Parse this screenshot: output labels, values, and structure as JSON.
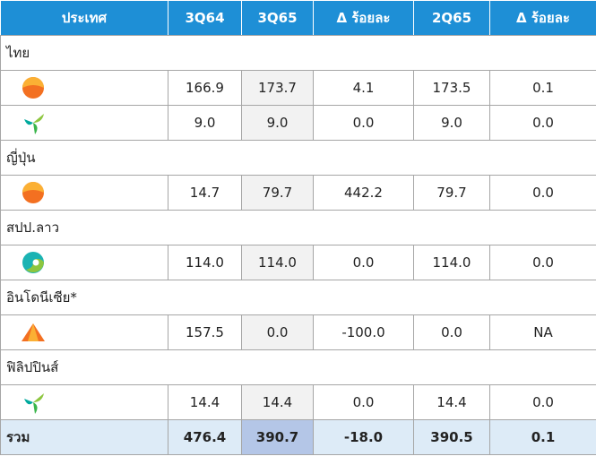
{
  "header": [
    "ประเทศ",
    "3Q64",
    "3Q65",
    "Δ ร้อยละ",
    "2Q65",
    "Δ ร้อยละ"
  ],
  "sections": [
    {
      "name": "ไทย",
      "rows": [
        [
          "166.9",
          "173.7",
          "4.1",
          "173.5",
          "0.1"
        ],
        [
          "9.0",
          "9.0",
          "0.0",
          "9.0",
          "0.0"
        ]
      ]
    },
    {
      "name": "ญี่ปุ่น",
      "rows": [
        [
          "14.7",
          "79.7",
          "442.2",
          "79.7",
          "0.0"
        ]
      ]
    },
    {
      "name": "สปป.ลาว",
      "rows": [
        [
          "114.0",
          "114.0",
          "0.0",
          "114.0",
          "0.0"
        ]
      ]
    },
    {
      "name": "อินโดนีเซีย*",
      "rows": [
        [
          "157.5",
          "0.0",
          "-100.0",
          "0.0",
          "NA"
        ]
      ]
    },
    {
      "name": "ฟิลิปปินส์",
      "rows": [
        [
          "14.4",
          "14.4",
          "0.0",
          "14.4",
          "0.0"
        ]
      ]
    }
  ],
  "total": {
    "label": "รวม",
    "values": [
      "476.4",
      "390.7",
      "-18.0",
      "390.5",
      "0.1"
    ]
  }
}
